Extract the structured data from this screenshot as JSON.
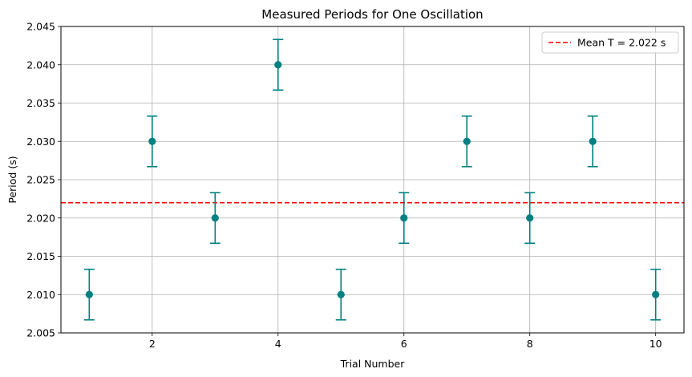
{
  "chart_data": {
    "type": "scatter",
    "title": "Measured Periods for One Oscillation",
    "xlabel": "Trial Number",
    "ylabel": "Period (s)",
    "xlim": [
      0.55,
      10.45
    ],
    "ylim": [
      2.005,
      2.045
    ],
    "x_ticks": [
      2,
      4,
      6,
      8,
      10
    ],
    "y_ticks": [
      2.005,
      2.01,
      2.015,
      2.02,
      2.025,
      2.03,
      2.035,
      2.04,
      2.045
    ],
    "y_tick_labels": [
      "2.005",
      "2.010",
      "2.015",
      "2.020",
      "2.025",
      "2.030",
      "2.035",
      "2.040",
      "2.045"
    ],
    "grid": true,
    "legend_position": "top-right",
    "series": [
      {
        "kind": "errorbar",
        "color": "#008080",
        "x": [
          1,
          2,
          3,
          4,
          5,
          6,
          7,
          8,
          9,
          10
        ],
        "y": [
          2.01,
          2.03,
          2.02,
          2.04,
          2.01,
          2.02,
          2.03,
          2.02,
          2.03,
          2.01
        ],
        "yerr": 0.0033
      },
      {
        "kind": "hline",
        "name": "Mean T = 2.022 s",
        "color": "#ff0000",
        "linestyle": "dashed",
        "y": 2.022
      }
    ]
  }
}
